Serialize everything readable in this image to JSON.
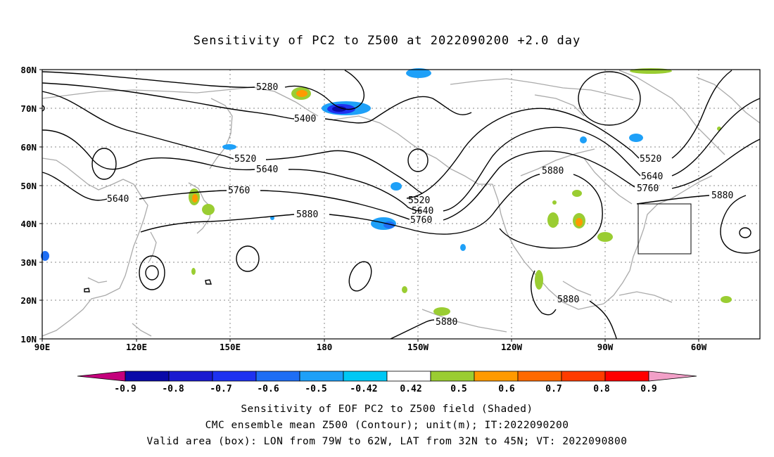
{
  "title": "Sensitivity of PC2 to Z500 at 2022090200 +2.0 day",
  "lat_labels": [
    "80N",
    "70N",
    "60N",
    "50N",
    "40N",
    "30N",
    "20N",
    "10N"
  ],
  "lon_labels": [
    "90E",
    "120E",
    "150E",
    "180",
    "150W",
    "120W",
    "90W",
    "60W"
  ],
  "contour_levels": [
    "5280",
    "5400",
    "5520",
    "5640",
    "5760",
    "5880"
  ],
  "colorbar": {
    "labels": [
      "-0.9",
      "-0.8",
      "-0.7",
      "-0.6",
      "-0.5",
      "-0.42",
      "0.42",
      "0.5",
      "0.6",
      "0.7",
      "0.8",
      "0.9"
    ],
    "colors": [
      "#c4007c",
      "#0a0aa8",
      "#1a1ad0",
      "#1e32f0",
      "#1e6ef5",
      "#1ea0f8",
      "#00c8f5",
      "#ffffff",
      "#9acd32",
      "#ff9a00",
      "#ff6a00",
      "#ff3c00",
      "#ff0000",
      "#f2a0c8"
    ]
  },
  "footer": {
    "line1": "Sensitivity of EOF PC2 to Z500 field (Shaded)",
    "line2": "CMC ensemble mean Z500 (Contour); unit(m); IT:2022090200",
    "line3": "Valid area (box): LON from 79W to 62W, LAT from 32N to 45N; VT: 2022090800"
  }
}
